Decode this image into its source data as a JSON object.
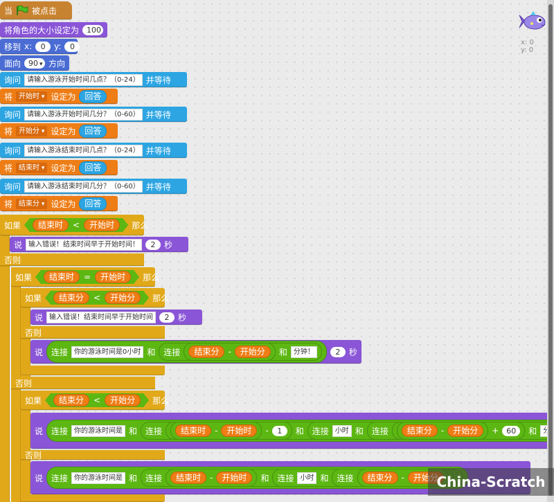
{
  "scripts": {
    "hat_when": "当",
    "hat_clicked": "被点击",
    "set_size_label": "将角色的大小设定为",
    "set_size_value": "100",
    "goto_label": "移到",
    "goto_x_label": "x:",
    "goto_x_value": "0",
    "goto_y_label": "y:",
    "goto_y_value": "0",
    "point_label": "面向",
    "point_value": "90",
    "point_suffix": "方向",
    "ask_label": "询问",
    "ask_wait": "并等待",
    "set_label": "将",
    "set_to": "设定为",
    "answer": "回答",
    "q1": "请输入游泳开始时间几点？（0-24）",
    "q2": "请输入游泳开始时间几分？（0-60）",
    "q3": "请输入游泳结束时间几点？（0-24）",
    "q4": "请输入游泳结束时间几分？（0-60）",
    "var_start_h": "开始时",
    "var_start_m": "开始分",
    "var_end_h": "结束时",
    "var_end_m": "结束分",
    "if_label": "如果",
    "then_label": "那么",
    "else_label": "否则",
    "say_label": "说",
    "seconds": "秒",
    "lt": "<",
    "eq": "=",
    "minus": "-",
    "plus": "+",
    "join_label": "连接",
    "and_label": "和",
    "err1": "输入错误！结束时间早于开始时间！",
    "err2": "输入错误！结束时间早于开始时间",
    "secs_value": "2",
    "msg_zero": "你的游泳时间是0小时",
    "msg_min": "分钟！",
    "msg_time": "你的游泳时间是",
    "msg_hour": "小时",
    "minus_one": "1",
    "sixty": "60"
  },
  "sprite_info": {
    "x_label": "x: 0",
    "y_label": "y: 0"
  },
  "watermark": "China-Scratch"
}
